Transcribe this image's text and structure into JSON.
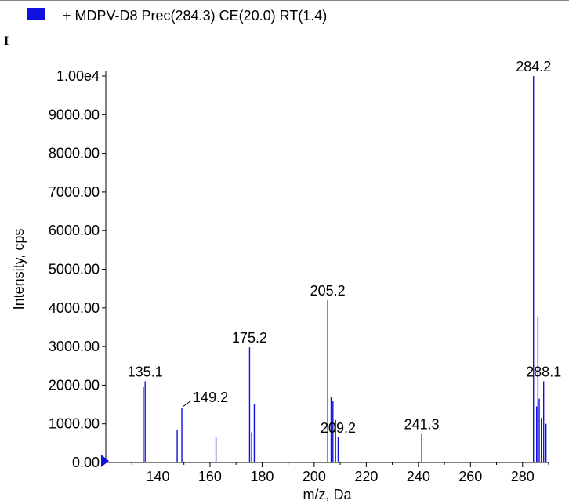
{
  "legend": {
    "label": "+ MDPV-D8 Prec(284.3) CE(20.0) RT(1.4)",
    "color": "#1010e0"
  },
  "panel_label": "I",
  "chart_data": {
    "type": "bar",
    "title": "",
    "xlabel": "m/z, Da",
    "ylabel": "Intensity, cps",
    "xlim": [
      120,
      290
    ],
    "ylim": [
      0,
      10000
    ],
    "xticks": [
      140,
      160,
      180,
      200,
      220,
      240,
      260,
      280
    ],
    "yticks": [
      {
        "value": 0,
        "label": "0.00"
      },
      {
        "value": 1000,
        "label": "1000.00"
      },
      {
        "value": 2000,
        "label": "2000.00"
      },
      {
        "value": 3000,
        "label": "3000.00"
      },
      {
        "value": 4000,
        "label": "4000.00"
      },
      {
        "value": 5000,
        "label": "5000.00"
      },
      {
        "value": 6000,
        "label": "6000.00"
      },
      {
        "value": 7000,
        "label": "7000.00"
      },
      {
        "value": 8000,
        "label": "8000.00"
      },
      {
        "value": 9000,
        "label": "9000.00"
      },
      {
        "value": 10000,
        "label": "1.00e4"
      }
    ],
    "series": [
      {
        "color": "#1010e0",
        "peaks": [
          {
            "mz": 134.4,
            "intensity": 1950
          },
          {
            "mz": 135.1,
            "intensity": 2100
          },
          {
            "mz": 147.4,
            "intensity": 850
          },
          {
            "mz": 149.2,
            "intensity": 1400
          },
          {
            "mz": 162.3,
            "intensity": 650
          },
          {
            "mz": 175.2,
            "intensity": 2980
          },
          {
            "mz": 176.0,
            "intensity": 780
          },
          {
            "mz": 177.0,
            "intensity": 1500
          },
          {
            "mz": 205.2,
            "intensity": 4200
          },
          {
            "mz": 206.5,
            "intensity": 1700
          },
          {
            "mz": 207.2,
            "intensity": 1600
          },
          {
            "mz": 208.2,
            "intensity": 1100
          },
          {
            "mz": 209.2,
            "intensity": 650
          },
          {
            "mz": 241.3,
            "intensity": 740
          },
          {
            "mz": 284.2,
            "intensity": 10000
          },
          {
            "mz": 285.4,
            "intensity": 1450
          },
          {
            "mz": 285.9,
            "intensity": 3780
          },
          {
            "mz": 286.4,
            "intensity": 1650
          },
          {
            "mz": 287.2,
            "intensity": 1150
          },
          {
            "mz": 288.1,
            "intensity": 2100
          },
          {
            "mz": 288.8,
            "intensity": 1000
          },
          {
            "mz": 289.0,
            "intensity": 1000
          }
        ]
      }
    ],
    "annotations": [
      {
        "text": "135.1",
        "mz": 135.1,
        "intensity": 2100
      },
      {
        "text": "149.2",
        "mz": 149.2,
        "intensity": 1400,
        "leader": true
      },
      {
        "text": "175.2",
        "mz": 175.2,
        "intensity": 2980
      },
      {
        "text": "205.2",
        "mz": 205.2,
        "intensity": 4200
      },
      {
        "text": "209.2",
        "mz": 209.2,
        "intensity": 650
      },
      {
        "text": "241.3",
        "mz": 241.3,
        "intensity": 740
      },
      {
        "text": "284.2",
        "mz": 284.2,
        "intensity": 10000
      },
      {
        "text": "288.1",
        "mz": 288.1,
        "intensity": 2100
      }
    ],
    "marker_color": "#1010e0"
  }
}
